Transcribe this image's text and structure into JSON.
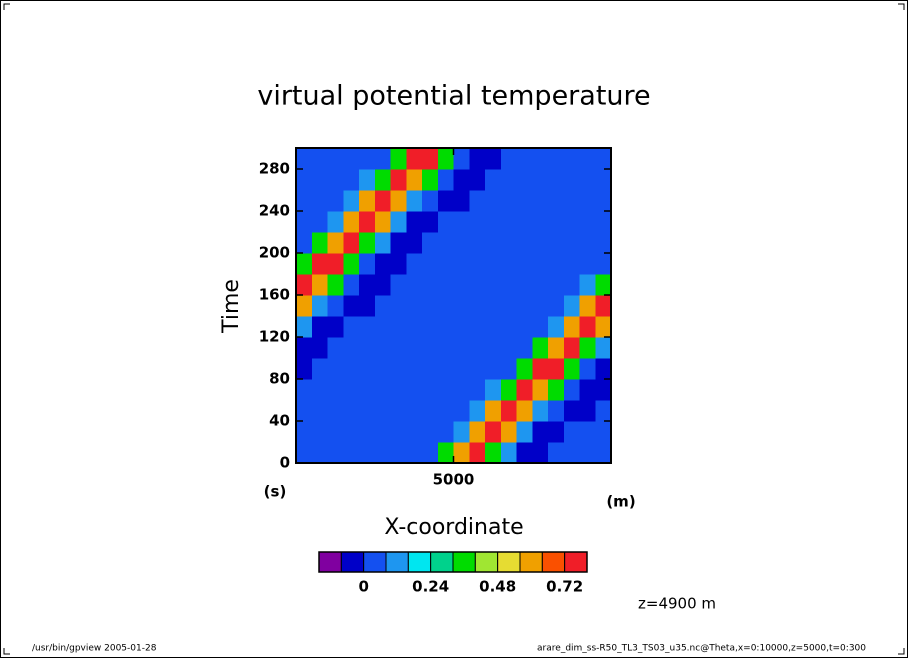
{
  "chart_data": {
    "type": "contour",
    "title": "virtual potential temperature",
    "xlabel": "X-coordinate",
    "ylabel": "Time",
    "xunit": "(m)",
    "yunit": "(s)",
    "annotation": "z=4900 m",
    "xlim": [
      0,
      10000
    ],
    "ylim": [
      0,
      300
    ],
    "xticks": [
      5000
    ],
    "yticks": [
      0,
      40,
      80,
      120,
      160,
      200,
      240,
      280
    ],
    "x": [
      250,
      750,
      1250,
      1750,
      2250,
      2750,
      3250,
      3750,
      4250,
      4750,
      5250,
      5750,
      6250,
      6750,
      7250,
      7750,
      8250,
      8750,
      9250,
      9750
    ],
    "y": [
      10,
      30,
      50,
      70,
      90,
      110,
      130,
      150,
      170,
      190,
      210,
      230,
      250,
      270,
      290
    ],
    "values": [
      [
        0.02,
        0.02,
        0.02,
        0.02,
        0.02,
        0.02,
        0.02,
        0.02,
        0.04,
        0.36,
        0.6,
        0.76,
        0.36,
        0.14,
        -0.04,
        -0.04,
        0.02,
        0.02,
        0.02,
        0.02
      ],
      [
        0.02,
        0.02,
        0.02,
        0.02,
        0.02,
        0.02,
        0.02,
        0.02,
        0.02,
        0.04,
        0.14,
        0.6,
        0.76,
        0.6,
        0.14,
        -0.04,
        -0.04,
        0.02,
        0.02,
        0.02
      ],
      [
        0.02,
        0.02,
        0.02,
        0.02,
        0.02,
        0.02,
        0.02,
        0.02,
        0.02,
        0.02,
        0.02,
        0.14,
        0.6,
        0.76,
        0.6,
        0.14,
        0.04,
        -0.04,
        -0.04,
        0.02
      ],
      [
        0.02,
        0.02,
        0.02,
        0.02,
        0.02,
        0.02,
        0.02,
        0.02,
        0.02,
        0.02,
        0.02,
        0.02,
        0.14,
        0.36,
        0.76,
        0.6,
        0.36,
        0.04,
        -0.04,
        -0.04
      ],
      [
        -0.04,
        0.02,
        0.02,
        0.02,
        0.02,
        0.02,
        0.02,
        0.02,
        0.02,
        0.02,
        0.02,
        0.02,
        0.02,
        0.04,
        0.36,
        0.76,
        0.76,
        0.36,
        0.04,
        -0.04
      ],
      [
        -0.04,
        -0.04,
        0.02,
        0.02,
        0.02,
        0.02,
        0.02,
        0.02,
        0.02,
        0.02,
        0.02,
        0.02,
        0.02,
        0.02,
        0.04,
        0.36,
        0.6,
        0.76,
        0.36,
        0.14
      ],
      [
        0.14,
        -0.04,
        -0.04,
        0.02,
        0.02,
        0.02,
        0.02,
        0.02,
        0.02,
        0.02,
        0.02,
        0.02,
        0.02,
        0.02,
        0.02,
        0.04,
        0.14,
        0.6,
        0.76,
        0.6
      ],
      [
        0.6,
        0.14,
        0.04,
        -0.04,
        -0.04,
        0.02,
        0.02,
        0.02,
        0.02,
        0.02,
        0.02,
        0.02,
        0.02,
        0.02,
        0.02,
        0.02,
        0.02,
        0.14,
        0.6,
        0.76
      ],
      [
        0.76,
        0.6,
        0.36,
        0.04,
        -0.04,
        -0.04,
        0.02,
        0.02,
        0.02,
        0.02,
        0.02,
        0.02,
        0.02,
        0.02,
        0.02,
        0.02,
        0.02,
        0.02,
        0.14,
        0.36
      ],
      [
        0.36,
        0.76,
        0.76,
        0.36,
        0.04,
        -0.04,
        -0.04,
        0.02,
        0.02,
        0.02,
        0.02,
        0.02,
        0.02,
        0.02,
        0.02,
        0.02,
        0.02,
        0.02,
        0.02,
        0.04
      ],
      [
        0.04,
        0.36,
        0.6,
        0.76,
        0.36,
        0.14,
        -0.04,
        -0.04,
        0.02,
        0.02,
        0.02,
        0.02,
        0.02,
        0.02,
        0.02,
        0.02,
        0.02,
        0.02,
        0.02,
        0.02
      ],
      [
        0.02,
        0.04,
        0.14,
        0.6,
        0.76,
        0.6,
        0.14,
        -0.04,
        -0.04,
        0.02,
        0.02,
        0.02,
        0.02,
        0.02,
        0.02,
        0.02,
        0.02,
        0.02,
        0.02,
        0.02
      ],
      [
        0.02,
        0.02,
        0.02,
        0.14,
        0.6,
        0.76,
        0.6,
        0.14,
        0.04,
        -0.04,
        -0.04,
        0.02,
        0.02,
        0.02,
        0.02,
        0.02,
        0.02,
        0.02,
        0.02,
        0.02
      ],
      [
        0.02,
        0.02,
        0.02,
        0.02,
        0.14,
        0.36,
        0.76,
        0.6,
        0.36,
        0.04,
        -0.04,
        -0.04,
        0.02,
        0.02,
        0.02,
        0.02,
        0.02,
        0.02,
        0.02,
        0.02
      ],
      [
        0.02,
        0.02,
        0.02,
        0.02,
        0.02,
        0.04,
        0.36,
        0.76,
        0.76,
        0.36,
        0.04,
        -0.04,
        -0.04,
        0.02,
        0.02,
        0.02,
        0.02,
        0.02,
        0.02,
        0.02
      ]
    ],
    "colorbar": {
      "levels": [
        -0.16,
        -0.08,
        0,
        0.08,
        0.16,
        0.24,
        0.32,
        0.4,
        0.48,
        0.56,
        0.64,
        0.72,
        0.8
      ],
      "colors": [
        "#8000a0",
        "#0000c8",
        "#1450f0",
        "#1e96f0",
        "#00e6f0",
        "#00d28c",
        "#00dc00",
        "#a0e632",
        "#e6dc32",
        "#f0a000",
        "#fa5000",
        "#f01e28"
      ],
      "ticks": [
        0,
        0.24,
        0.48,
        0.72
      ]
    }
  },
  "footer": {
    "left": "/usr/bin/gpview  2005-01-28",
    "right": "arare_dim_ss-R50_TL3_TS03_u35.nc@Theta,x=0:10000,z=5000,t=0:300"
  }
}
